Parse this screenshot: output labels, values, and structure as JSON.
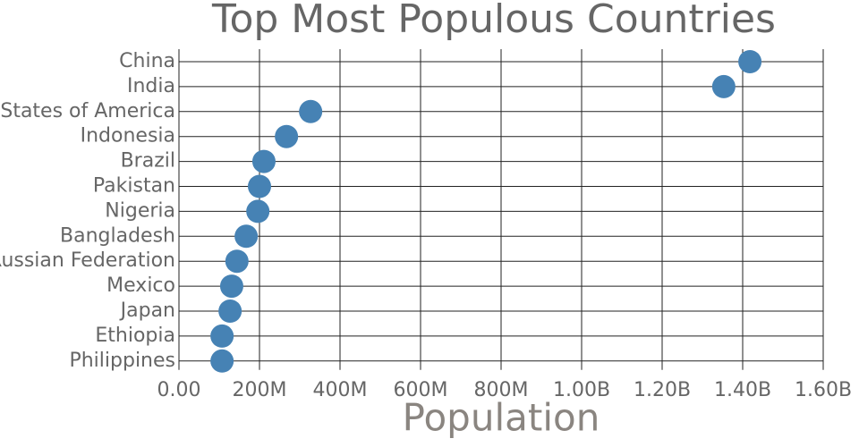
{
  "chart_data": {
    "type": "dot",
    "title": "Top Most Populous Countries",
    "x_label": "Population",
    "categories": [
      "China",
      "India",
      "United States of America",
      "Indonesia",
      "Brazil",
      "Pakistan",
      "Nigeria",
      "Bangladesh",
      "Russian Federation",
      "Mexico",
      "Japan",
      "Ethiopia",
      "Philippines"
    ],
    "values": [
      1418000000,
      1353000000,
      327000000,
      267000000,
      211000000,
      200000000,
      196000000,
      167000000,
      144000000,
      131000000,
      127000000,
      107000000,
      107000000
    ],
    "color": "#4682b4",
    "xlim": [
      0,
      1600000000
    ],
    "xticks": [
      {
        "value": 0,
        "label": "0.00"
      },
      {
        "value": 200000000,
        "label": "200M"
      },
      {
        "value": 400000000,
        "label": "400M"
      },
      {
        "value": 600000000,
        "label": "600M"
      },
      {
        "value": 800000000,
        "label": "800M"
      },
      {
        "value": 1000000000,
        "label": "1.00B"
      },
      {
        "value": 1200000000,
        "label": "1.20B"
      },
      {
        "value": 1400000000,
        "label": "1.40B"
      },
      {
        "value": 1600000000,
        "label": "1.60B"
      }
    ],
    "grid": true
  }
}
